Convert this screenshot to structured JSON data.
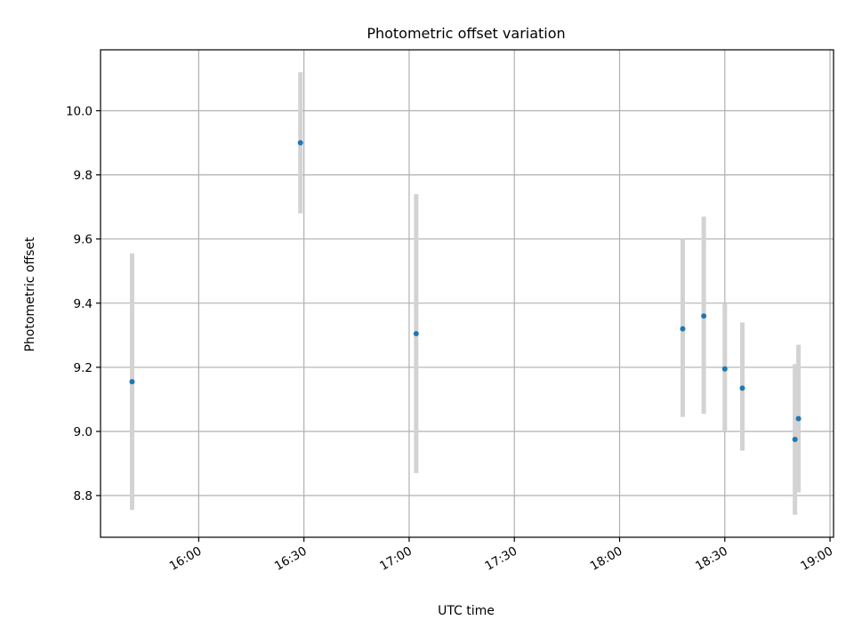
{
  "chart_data": {
    "type": "scatter",
    "title": "Photometric offset variation",
    "xlabel": "UTC time",
    "ylabel": "Photometric offset",
    "x_ticks": [
      "16:00",
      "16:30",
      "17:00",
      "17:30",
      "18:00",
      "18:30",
      "19:00"
    ],
    "y_ticks": [
      "8.8",
      "9.0",
      "9.2",
      "9.4",
      "9.6",
      "9.8",
      "10.0"
    ],
    "xlim": [
      "15:32",
      "19:01"
    ],
    "ylim": [
      8.67,
      10.19
    ],
    "grid": true,
    "legend": "none",
    "series": [
      {
        "marker_color": "#1f77b4",
        "errorbar_color": "#d3d3d3",
        "points": [
          {
            "x": "15:41",
            "y": 9.155,
            "err_low": 8.755,
            "err_high": 9.555
          },
          {
            "x": "16:29",
            "y": 9.9,
            "err_low": 9.68,
            "err_high": 10.12
          },
          {
            "x": "17:02",
            "y": 9.305,
            "err_low": 8.87,
            "err_high": 9.74
          },
          {
            "x": "18:18",
            "y": 9.32,
            "err_low": 9.045,
            "err_high": 9.6
          },
          {
            "x": "18:24",
            "y": 9.36,
            "err_low": 9.055,
            "err_high": 9.67
          },
          {
            "x": "18:30",
            "y": 9.195,
            "err_low": 9.0,
            "err_high": 9.4
          },
          {
            "x": "18:35",
            "y": 9.135,
            "err_low": 8.94,
            "err_high": 9.34
          },
          {
            "x": "18:50",
            "y": 8.975,
            "err_low": 8.74,
            "err_high": 9.21
          },
          {
            "x": "18:51",
            "y": 9.04,
            "err_low": 8.81,
            "err_high": 9.27
          }
        ]
      }
    ]
  }
}
